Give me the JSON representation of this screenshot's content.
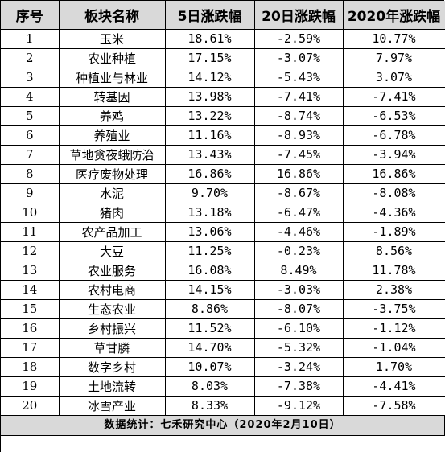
{
  "headers": [
    "序号",
    "板块名称",
    "5日涨跌幅",
    "20日涨跌幅",
    "2020年涨跌幅"
  ],
  "rows": [
    {
      "no": "1",
      "name": "玉米",
      "d5": "18.61%",
      "d20": "-2.59%",
      "ytd": "10.77%"
    },
    {
      "no": "2",
      "name": "农业种植",
      "d5": "17.15%",
      "d20": "-3.07%",
      "ytd": "7.97%"
    },
    {
      "no": "3",
      "name": "种植业与林业",
      "d5": "14.12%",
      "d20": "-5.43%",
      "ytd": "3.07%"
    },
    {
      "no": "4",
      "name": "转基因",
      "d5": "13.98%",
      "d20": "-7.41%",
      "ytd": "-7.41%"
    },
    {
      "no": "5",
      "name": "养鸡",
      "d5": "13.22%",
      "d20": "-8.74%",
      "ytd": "-6.53%"
    },
    {
      "no": "6",
      "name": "养殖业",
      "d5": "11.16%",
      "d20": "-8.93%",
      "ytd": "-6.78%"
    },
    {
      "no": "7",
      "name": "草地贪夜蛾防治",
      "d5": "13.43%",
      "d20": "-7.45%",
      "ytd": "-3.94%"
    },
    {
      "no": "8",
      "name": "医疗废物处理",
      "d5": "16.86%",
      "d20": "16.86%",
      "ytd": "16.86%"
    },
    {
      "no": "9",
      "name": "水泥",
      "d5": "9.70%",
      "d20": "-8.67%",
      "ytd": "-8.08%"
    },
    {
      "no": "10",
      "name": "猪肉",
      "d5": "13.18%",
      "d20": "-6.47%",
      "ytd": "-4.36%"
    },
    {
      "no": "11",
      "name": "农产品加工",
      "d5": "13.06%",
      "d20": "-4.46%",
      "ytd": "-1.89%"
    },
    {
      "no": "12",
      "name": "大豆",
      "d5": "11.25%",
      "d20": "-0.23%",
      "ytd": "8.56%"
    },
    {
      "no": "13",
      "name": "农业服务",
      "d5": "16.08%",
      "d20": "8.49%",
      "ytd": "11.78%"
    },
    {
      "no": "14",
      "name": "农村电商",
      "d5": "14.15%",
      "d20": "-3.03%",
      "ytd": "2.38%"
    },
    {
      "no": "15",
      "name": "生态农业",
      "d5": "8.86%",
      "d20": "-8.07%",
      "ytd": "-3.75%"
    },
    {
      "no": "16",
      "name": "乡村振兴",
      "d5": "11.52%",
      "d20": "-6.10%",
      "ytd": "-1.12%"
    },
    {
      "no": "17",
      "name": "草甘膦",
      "d5": "14.70%",
      "d20": "-5.32%",
      "ytd": "-1.04%"
    },
    {
      "no": "18",
      "name": "数字乡村",
      "d5": "10.07%",
      "d20": "-3.24%",
      "ytd": "1.70%"
    },
    {
      "no": "19",
      "name": "土地流转",
      "d5": "8.03%",
      "d20": "-7.38%",
      "ytd": "-4.41%"
    },
    {
      "no": "20",
      "name": "冰雪产业",
      "d5": "8.33%",
      "d20": "-9.12%",
      "ytd": "-7.58%"
    }
  ],
  "footer": "数据统计：七禾研究中心（2020年2月10日）",
  "colors": {
    "header_bg": "#d9d9d9",
    "footer_bg": "#d9d9d9",
    "grid_line": "#000000"
  }
}
